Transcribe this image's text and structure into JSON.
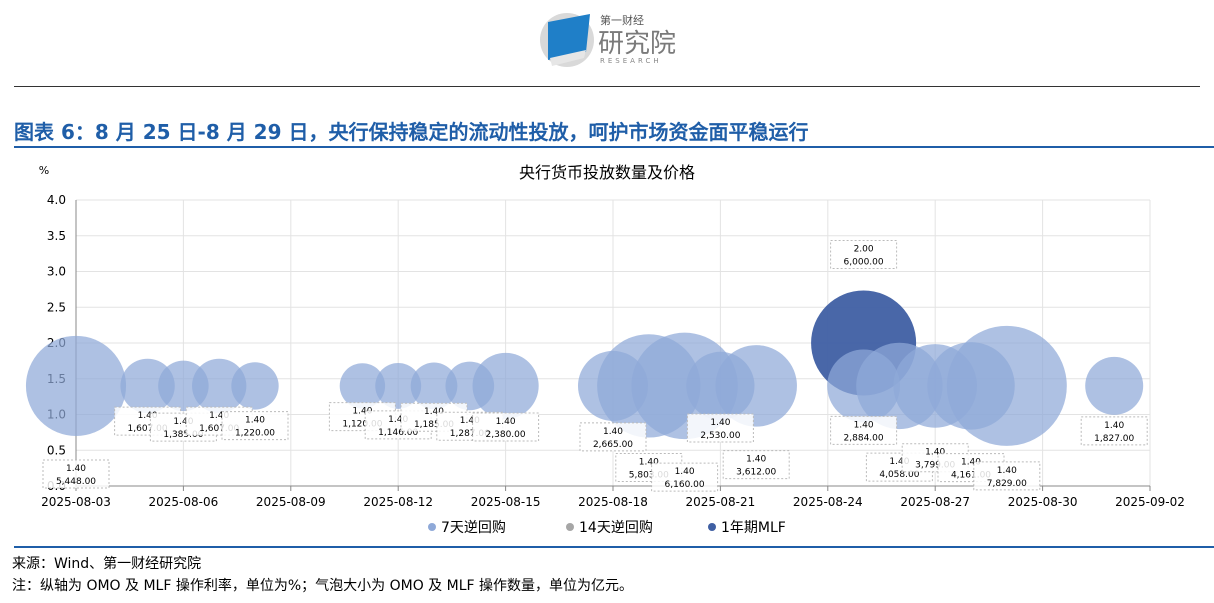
{
  "logo": {
    "brand_top": "第一财经",
    "brand_main": "研究院",
    "brand_sub": "RESEARCH"
  },
  "figure_title": "图表 6：8 月 25 日-8 月 29 日，央行保持稳定的流动性投放，呵护市场资金面平稳运行",
  "source": "来源：Wind、第一财经研究院",
  "note": "注：纵轴为 OMO 及 MLF 操作利率，单位为%；气泡大小为 OMO 及 MLF 操作数量，单位为亿元。",
  "colors": {
    "omo7": "#8fa9d8",
    "omo14": "#a6a6a6",
    "mlf": "#3f5fa3",
    "title": "#1f5ea8"
  },
  "chart_data": {
    "type": "bubble",
    "title": "央行货币投放数量及价格",
    "ylabel": "%",
    "ylim": [
      0,
      4
    ],
    "yticks": [
      "0.0",
      "0.5",
      "1.0",
      "1.5",
      "2.0",
      "2.5",
      "3.0",
      "3.5",
      "4.0"
    ],
    "xlim": [
      "2025-08-03",
      "2025-09-02"
    ],
    "xticks": [
      "2025-08-03",
      "2025-08-06",
      "2025-08-09",
      "2025-08-12",
      "2025-08-15",
      "2025-08-18",
      "2025-08-21",
      "2025-08-24",
      "2025-08-27",
      "2025-08-30",
      "2025-09-02"
    ],
    "legend_position": "bottom",
    "series": [
      {
        "name": "7天逆回购",
        "color": "#8fa9d8",
        "points": [
          {
            "date": "2025-08-03",
            "rate": 1.4,
            "amount": 5448.0,
            "label_rate": "1.40",
            "label_amount": "5,448.00"
          },
          {
            "date": "2025-08-05",
            "rate": 1.4,
            "amount": 1607.0,
            "label_rate": "1.40",
            "label_amount": "1,607.00"
          },
          {
            "date": "2025-08-06",
            "rate": 1.4,
            "amount": 1385.0,
            "label_rate": "1.40",
            "label_amount": "1,385.00"
          },
          {
            "date": "2025-08-07",
            "rate": 1.4,
            "amount": 1607.0,
            "label_rate": "1.40",
            "label_amount": "1,607.00"
          },
          {
            "date": "2025-08-08",
            "rate": 1.4,
            "amount": 1220.0,
            "label_rate": "1.40",
            "label_amount": "1,220.00"
          },
          {
            "date": "2025-08-11",
            "rate": 1.4,
            "amount": 1120.0,
            "label_rate": "1.40",
            "label_amount": "1,120.00"
          },
          {
            "date": "2025-08-12",
            "rate": 1.4,
            "amount": 1146.0,
            "label_rate": "1.40",
            "label_amount": "1,146.00"
          },
          {
            "date": "2025-08-13",
            "rate": 1.4,
            "amount": 1185.0,
            "label_rate": "1.40",
            "label_amount": "1,185.00"
          },
          {
            "date": "2025-08-14",
            "rate": 1.4,
            "amount": 1287.0,
            "label_rate": "1.40",
            "label_amount": "1,287.00"
          },
          {
            "date": "2025-08-15",
            "rate": 1.4,
            "amount": 2380.0,
            "label_rate": "1.40",
            "label_amount": "2,380.00"
          },
          {
            "date": "2025-08-18",
            "rate": 1.4,
            "amount": 2665.0,
            "label_rate": "1.40",
            "label_amount": "2,665.00"
          },
          {
            "date": "2025-08-19",
            "rate": 1.4,
            "amount": 5803.0,
            "label_rate": "1.40",
            "label_amount": "5,803.00"
          },
          {
            "date": "2025-08-20",
            "rate": 1.4,
            "amount": 6160.0,
            "label_rate": "1.40",
            "label_amount": "6,160.00"
          },
          {
            "date": "2025-08-21",
            "rate": 1.4,
            "amount": 2530.0,
            "label_rate": "1.40",
            "label_amount": "2,530.00"
          },
          {
            "date": "2025-08-22",
            "rate": 1.4,
            "amount": 3612.0,
            "label_rate": "1.40",
            "label_amount": "3,612.00"
          },
          {
            "date": "2025-08-25",
            "rate": 1.4,
            "amount": 2884.0,
            "label_rate": "1.40",
            "label_amount": "2,884.00"
          },
          {
            "date": "2025-08-26",
            "rate": 1.4,
            "amount": 4058.0,
            "label_rate": "1.40",
            "label_amount": "4,058.00"
          },
          {
            "date": "2025-08-27",
            "rate": 1.4,
            "amount": 3799.0,
            "label_rate": "1.40",
            "label_amount": "3,799.00"
          },
          {
            "date": "2025-08-28",
            "rate": 1.4,
            "amount": 4161.0,
            "label_rate": "1.40",
            "label_amount": "4,161.00"
          },
          {
            "date": "2025-08-29",
            "rate": 1.4,
            "amount": 7829.0,
            "label_rate": "1.40",
            "label_amount": "7,829.00"
          },
          {
            "date": "2025-09-01",
            "rate": 1.4,
            "amount": 1827.0,
            "label_rate": "1.40",
            "label_amount": "1,827.00"
          }
        ]
      },
      {
        "name": "14天逆回购",
        "color": "#a6a6a6",
        "points": []
      },
      {
        "name": "1年期MLF",
        "color": "#3f5fa3",
        "points": [
          {
            "date": "2025-08-25",
            "rate": 2.0,
            "amount": 6000.0,
            "label_rate": "2.00",
            "label_amount": "6,000.00"
          }
        ]
      }
    ]
  }
}
